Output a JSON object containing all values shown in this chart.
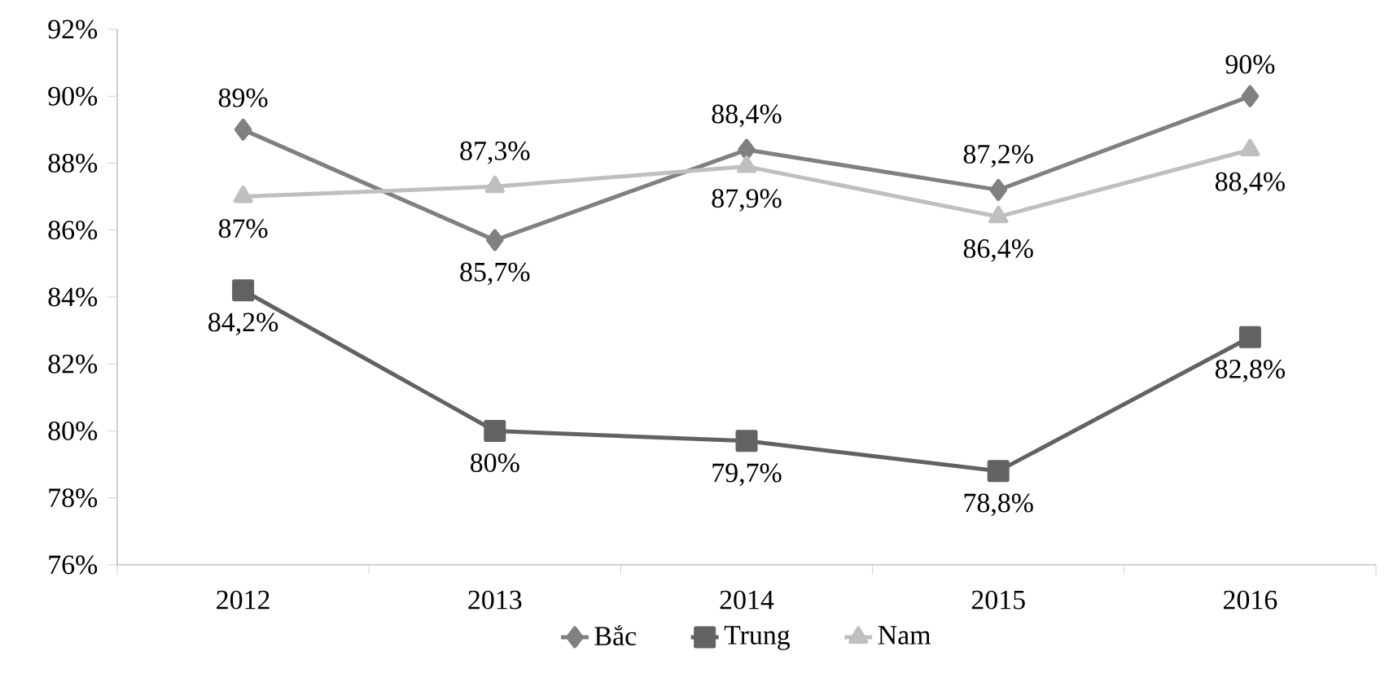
{
  "chart_data": {
    "type": "line",
    "categories": [
      "2012",
      "2013",
      "2014",
      "2015",
      "2016"
    ],
    "series": [
      {
        "name": "Bắc",
        "color": "#808080",
        "marker": "diamond",
        "values": [
          89,
          85.7,
          88.4,
          87.2,
          90
        ],
        "value_labels": [
          "89%",
          "85,7%",
          "88,4%",
          "87,2%",
          "90%"
        ]
      },
      {
        "name": "Trung",
        "color": "#626262",
        "marker": "square",
        "values": [
          84.2,
          80,
          79.7,
          78.8,
          82.8
        ],
        "value_labels": [
          "84,2%",
          "80%",
          "79,7%",
          "78,8%",
          "82,8%"
        ]
      },
      {
        "name": "Nam",
        "color": "#bfbfbf",
        "marker": "triangle",
        "values": [
          87,
          87.3,
          87.9,
          86.4,
          88.4
        ],
        "value_labels": [
          "87%",
          "87,3%",
          "87,9%",
          "86,4%",
          "88,4%"
        ]
      }
    ],
    "ylim": [
      76,
      92
    ],
    "yticks": [
      {
        "value": 76,
        "label": "76%"
      },
      {
        "value": 78,
        "label": "78%"
      },
      {
        "value": 80,
        "label": "80%"
      },
      {
        "value": 82,
        "label": "82%"
      },
      {
        "value": 84,
        "label": "84%"
      },
      {
        "value": 86,
        "label": "86%"
      },
      {
        "value": 88,
        "label": "88%"
      },
      {
        "value": 90,
        "label": "90%"
      },
      {
        "value": 92,
        "label": "92%"
      }
    ],
    "grid": false,
    "legend": "bottom",
    "line_style": "solid"
  }
}
